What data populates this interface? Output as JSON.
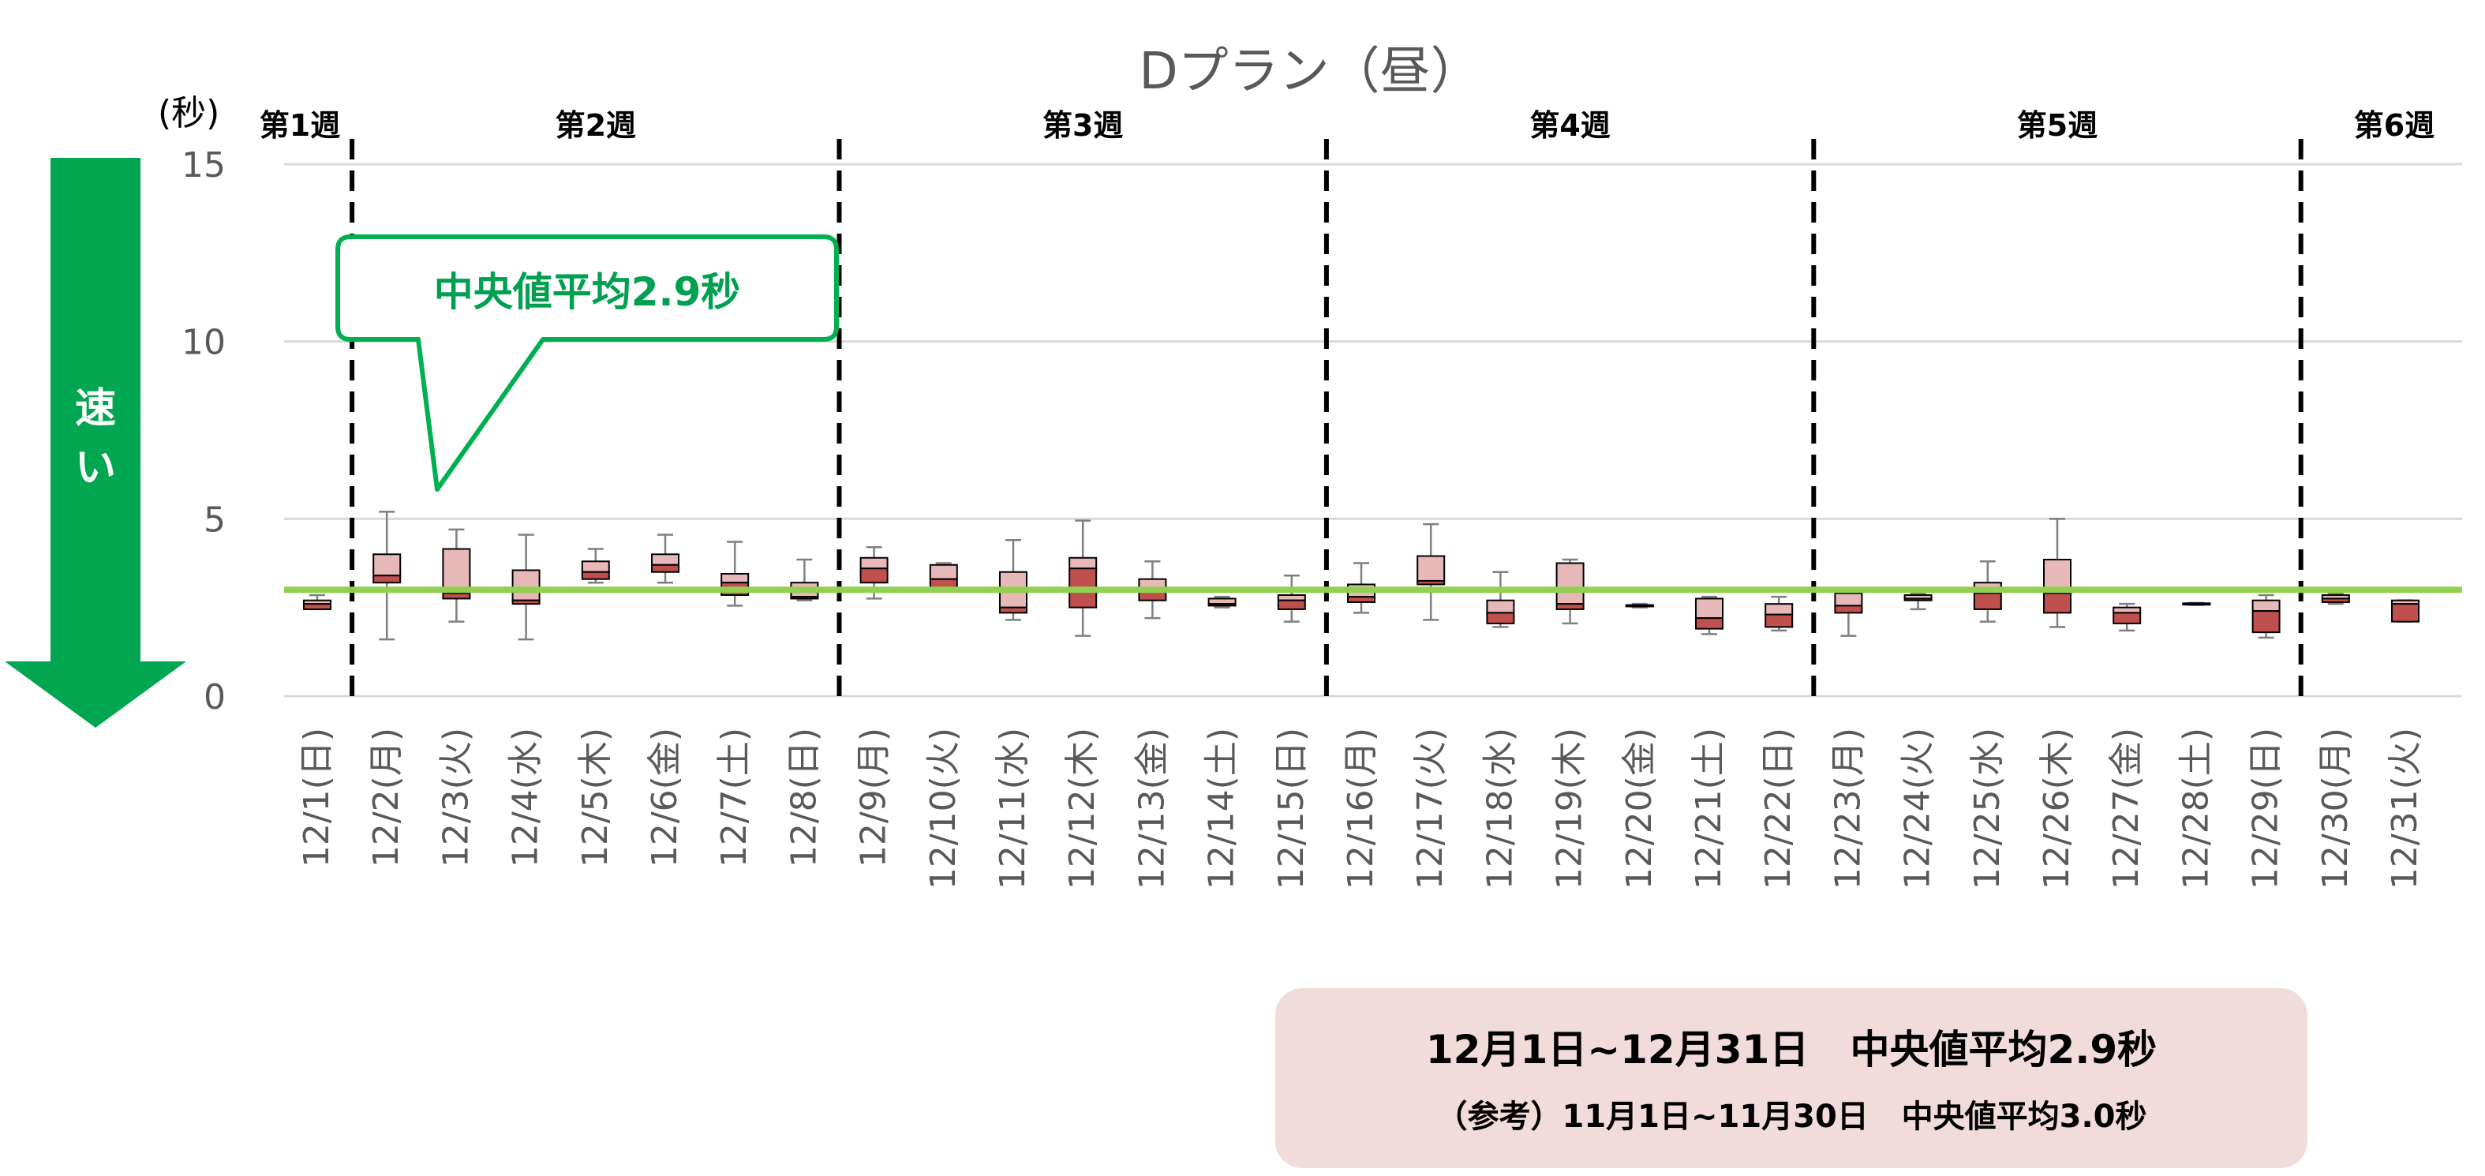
{
  "chart_data": {
    "type": "box",
    "title": "Dプラン（昼）",
    "ylabel": "(秒)",
    "ylim": [
      0,
      15
    ],
    "yticks": [
      0,
      5,
      10,
      15
    ],
    "grid": true,
    "median_average_line": 3.0,
    "weeks": [
      {
        "label": "第1週",
        "start_index": 0,
        "end_index": 0
      },
      {
        "label": "第2週",
        "start_index": 1,
        "end_index": 7
      },
      {
        "label": "第3週",
        "start_index": 8,
        "end_index": 14
      },
      {
        "label": "第4週",
        "start_index": 15,
        "end_index": 21
      },
      {
        "label": "第5週",
        "start_index": 22,
        "end_index": 28
      },
      {
        "label": "第6週",
        "start_index": 29,
        "end_index": 30
      }
    ],
    "categories": [
      "12/1(日)",
      "12/2(月)",
      "12/3(火)",
      "12/4(水)",
      "12/5(木)",
      "12/6(金)",
      "12/7(土)",
      "12/8(日)",
      "12/9(月)",
      "12/10(火)",
      "12/11(水)",
      "12/12(木)",
      "12/13(金)",
      "12/14(土)",
      "12/15(日)",
      "12/16(月)",
      "12/17(火)",
      "12/18(水)",
      "12/19(木)",
      "12/20(金)",
      "12/21(土)",
      "12/22(日)",
      "12/23(月)",
      "12/24(火)",
      "12/25(水)",
      "12/26(木)",
      "12/27(金)",
      "12/28(土)",
      "12/29(日)",
      "12/30(月)",
      "12/31(火)"
    ],
    "boxes": [
      {
        "min": 2.45,
        "q1": 2.45,
        "median": 2.6,
        "q3": 2.7,
        "max": 2.85
      },
      {
        "min": 1.6,
        "q1": 3.2,
        "median": 3.4,
        "q3": 4.0,
        "max": 5.2
      },
      {
        "min": 2.1,
        "q1": 2.75,
        "median": 2.9,
        "q3": 4.15,
        "max": 4.7
      },
      {
        "min": 1.6,
        "q1": 2.6,
        "median": 2.7,
        "q3": 3.55,
        "max": 4.55
      },
      {
        "min": 3.2,
        "q1": 3.3,
        "median": 3.5,
        "q3": 3.8,
        "max": 4.15
      },
      {
        "min": 3.2,
        "q1": 3.5,
        "median": 3.7,
        "q3": 4.0,
        "max": 4.55
      },
      {
        "min": 2.55,
        "q1": 2.85,
        "median": 3.2,
        "q3": 3.45,
        "max": 4.35
      },
      {
        "min": 2.7,
        "q1": 2.75,
        "median": 2.8,
        "q3": 3.2,
        "max": 3.85
      },
      {
        "min": 2.75,
        "q1": 3.2,
        "median": 3.6,
        "q3": 3.9,
        "max": 4.2
      },
      {
        "min": 2.95,
        "q1": 3.0,
        "median": 3.3,
        "q3": 3.7,
        "max": 3.75
      },
      {
        "min": 2.15,
        "q1": 2.35,
        "median": 2.5,
        "q3": 3.5,
        "max": 4.4
      },
      {
        "min": 1.7,
        "q1": 2.5,
        "median": 3.6,
        "q3": 3.9,
        "max": 4.95
      },
      {
        "min": 2.2,
        "q1": 2.7,
        "median": 3.0,
        "q3": 3.3,
        "max": 3.8
      },
      {
        "min": 2.5,
        "q1": 2.55,
        "median": 2.6,
        "q3": 2.75,
        "max": 2.8
      },
      {
        "min": 2.1,
        "q1": 2.45,
        "median": 2.7,
        "q3": 2.85,
        "max": 3.4
      },
      {
        "min": 2.35,
        "q1": 2.65,
        "median": 2.8,
        "q3": 3.15,
        "max": 3.75
      },
      {
        "min": 2.15,
        "q1": 3.15,
        "median": 3.25,
        "q3": 3.95,
        "max": 4.85
      },
      {
        "min": 1.95,
        "q1": 2.05,
        "median": 2.35,
        "q3": 2.7,
        "max": 3.5
      },
      {
        "min": 2.05,
        "q1": 2.45,
        "median": 2.6,
        "q3": 3.75,
        "max": 3.85
      },
      {
        "min": 2.5,
        "q1": 2.53,
        "median": 2.55,
        "q3": 2.57,
        "max": 2.6
      },
      {
        "min": 1.75,
        "q1": 1.9,
        "median": 2.2,
        "q3": 2.75,
        "max": 2.8
      },
      {
        "min": 1.85,
        "q1": 1.95,
        "median": 2.3,
        "q3": 2.6,
        "max": 2.8
      },
      {
        "min": 1.7,
        "q1": 2.35,
        "median": 2.55,
        "q3": 2.9,
        "max": 2.95
      },
      {
        "min": 2.45,
        "q1": 2.7,
        "median": 2.75,
        "q3": 2.85,
        "max": 2.9
      },
      {
        "min": 2.1,
        "q1": 2.45,
        "median": 2.9,
        "q3": 3.2,
        "max": 3.8
      },
      {
        "min": 1.95,
        "q1": 2.35,
        "median": 2.9,
        "q3": 3.85,
        "max": 5.0
      },
      {
        "min": 1.85,
        "q1": 2.05,
        "median": 2.35,
        "q3": 2.5,
        "max": 2.6
      },
      {
        "min": 2.57,
        "q1": 2.58,
        "median": 2.6,
        "q3": 2.62,
        "max": 2.63
      },
      {
        "min": 1.65,
        "q1": 1.8,
        "median": 2.4,
        "q3": 2.7,
        "max": 2.85
      },
      {
        "min": 2.6,
        "q1": 2.65,
        "median": 2.75,
        "q3": 2.85,
        "max": 2.9
      },
      {
        "min": 2.1,
        "q1": 2.1,
        "median": 2.6,
        "q3": 2.7,
        "max": 2.7
      }
    ],
    "annotations": {
      "callout": "中央値平均2.9秒",
      "fast_arrow": "速い"
    },
    "colors": {
      "box_upper": "#E6B8B7",
      "box_lower": "#C0504D",
      "box_stroke": "#000000",
      "median_line": "#92D050",
      "callout_border": "#00B050",
      "callout_text": "#00A050",
      "arrow": "#00A650",
      "summary_bg": "#F2DCDB"
    }
  },
  "summary": {
    "line1_range": "12月1日~12月31日",
    "line1_value": "中央値平均2.9秒",
    "line2_range": "（参考）11月1日~11月30日",
    "line2_value": "中央値平均3.0秒"
  }
}
